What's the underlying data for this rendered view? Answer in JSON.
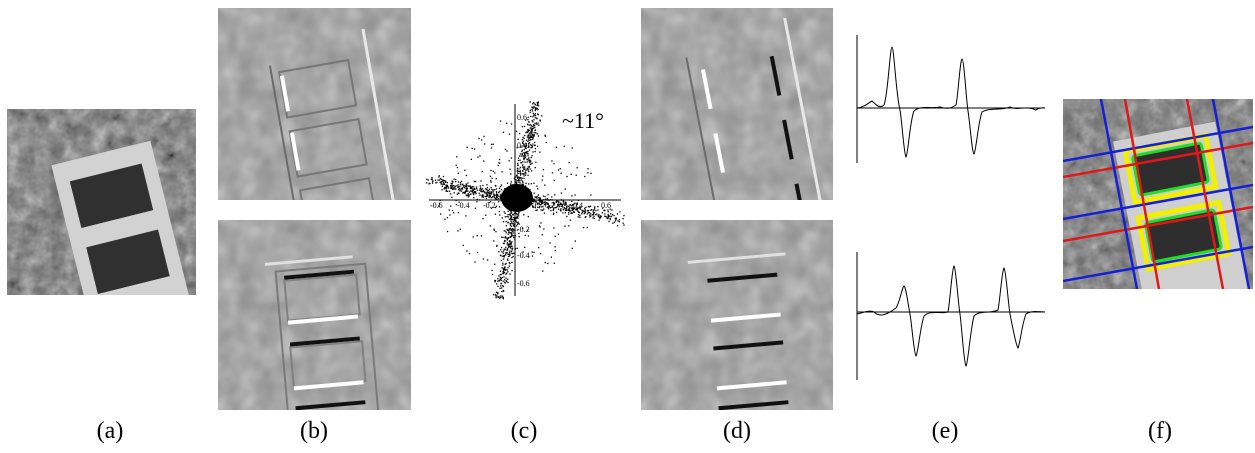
{
  "panels": {
    "a": {
      "label": "(a)"
    },
    "b": {
      "label": "(b)"
    },
    "c": {
      "label": "(c)",
      "angle_label": "~11°",
      "x_ticks": [
        "-0.6",
        "-0.4",
        "-0.2",
        "0.2",
        "0.4",
        "0.6"
      ],
      "y_ticks": [
        "0.6",
        "0.4",
        "0.2",
        "-0.2",
        "-0.4",
        "-0.6"
      ]
    },
    "d": {
      "label": "(d)"
    },
    "e": {
      "label": "(e)"
    },
    "f": {
      "label": "(f)"
    }
  },
  "colors": {
    "grid_red": "#e01818",
    "grid_blue": "#1420d8",
    "hole_green": "#22dd22",
    "frame_yellow": "#f0f000"
  }
}
